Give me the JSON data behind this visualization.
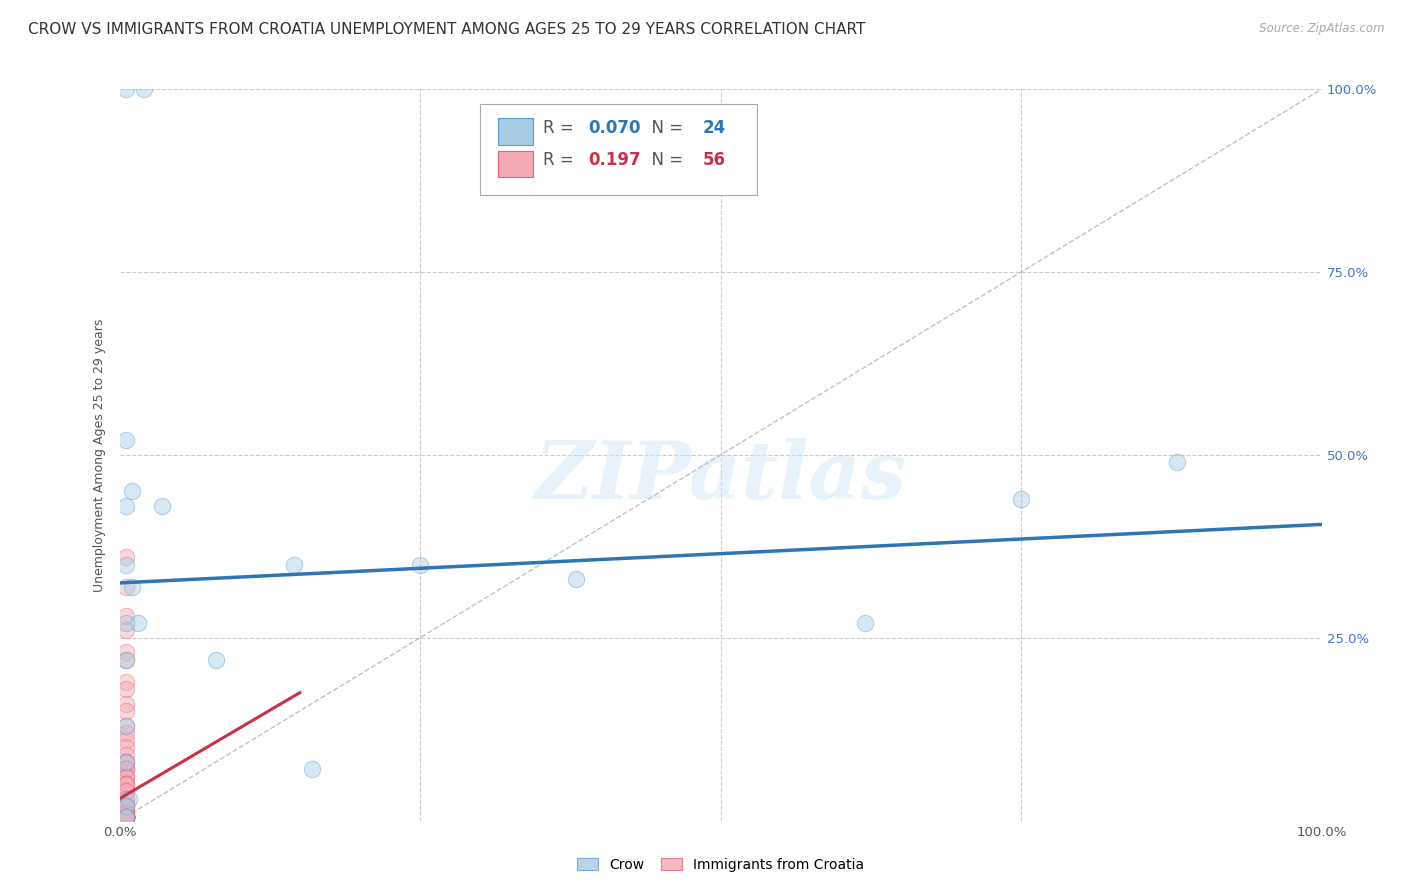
{
  "title": "CROW VS IMMIGRANTS FROM CROATIA UNEMPLOYMENT AMONG AGES 25 TO 29 YEARS CORRELATION CHART",
  "source": "Source: ZipAtlas.com",
  "ylabel": "Unemployment Among Ages 25 to 29 years",
  "watermark": "ZIPatlas",
  "xlim": [
    0,
    1
  ],
  "ylim": [
    0,
    1
  ],
  "crow_color": "#a8cce4",
  "crow_edge_color": "#5b9bd5",
  "immigrant_color": "#f4a7b4",
  "immigrant_edge_color": "#e8637a",
  "crow_line_color": "#2e75b6",
  "immigrant_line_color": "#c9304a",
  "diagonal_color": "#bbbbbb",
  "grid_color": "#cccccc",
  "legend_R_crow": "0.070",
  "legend_N_crow": "24",
  "legend_R_immigrant": "0.197",
  "legend_N_immigrant": "56",
  "crow_points_x": [
    0.005,
    0.02,
    0.005,
    0.01,
    0.005,
    0.035,
    0.145,
    0.25,
    0.005,
    0.01,
    0.015,
    0.005,
    0.005,
    0.08,
    0.005,
    0.38,
    0.62,
    0.75,
    0.88,
    0.16,
    0.005,
    0.008,
    0.005,
    0.005
  ],
  "crow_points_y": [
    1.0,
    1.0,
    0.52,
    0.45,
    0.43,
    0.43,
    0.35,
    0.35,
    0.35,
    0.32,
    0.27,
    0.27,
    0.22,
    0.22,
    0.13,
    0.33,
    0.27,
    0.44,
    0.49,
    0.07,
    0.08,
    0.03,
    0.02,
    0.005
  ],
  "immigrant_points_x": [
    0.005,
    0.005,
    0.005,
    0.005,
    0.005,
    0.005,
    0.005,
    0.005,
    0.005,
    0.005,
    0.005,
    0.005,
    0.005,
    0.005,
    0.005,
    0.005,
    0.005,
    0.005,
    0.005,
    0.005,
    0.005,
    0.005,
    0.005,
    0.005,
    0.005,
    0.005,
    0.005,
    0.005,
    0.005,
    0.005,
    0.005,
    0.005,
    0.005,
    0.005,
    0.005,
    0.005,
    0.005,
    0.005,
    0.005,
    0.005,
    0.005,
    0.005,
    0.005,
    0.005,
    0.005,
    0.005,
    0.005,
    0.005,
    0.005,
    0.005,
    0.005,
    0.005,
    0.005,
    0.005,
    0.005,
    0.005
  ],
  "immigrant_points_y": [
    0.36,
    0.32,
    0.28,
    0.26,
    0.23,
    0.22,
    0.19,
    0.18,
    0.16,
    0.15,
    0.13,
    0.12,
    0.11,
    0.1,
    0.09,
    0.08,
    0.08,
    0.07,
    0.07,
    0.07,
    0.06,
    0.06,
    0.05,
    0.05,
    0.05,
    0.04,
    0.04,
    0.03,
    0.03,
    0.02,
    0.02,
    0.02,
    0.01,
    0.01,
    0.01,
    0.005,
    0.005,
    0.005,
    0.005,
    0.005,
    0.005,
    0.005,
    0.005,
    0.005,
    0.005,
    0.005,
    0.005,
    0.005,
    0.005,
    0.005,
    0.005,
    0.005,
    0.005,
    0.005,
    0.005,
    0.005
  ],
  "crow_line_x": [
    0.0,
    1.0
  ],
  "crow_line_y": [
    0.325,
    0.405
  ],
  "immigrant_line_x": [
    0.0,
    0.15
  ],
  "immigrant_line_y": [
    0.03,
    0.175
  ],
  "background_color": "#ffffff",
  "tick_color_right": "#4472c4",
  "marker_size": 140,
  "marker_alpha": 0.45,
  "title_fontsize": 11,
  "axis_label_fontsize": 9,
  "tick_fontsize": 9.5,
  "legend_fontsize": 12
}
